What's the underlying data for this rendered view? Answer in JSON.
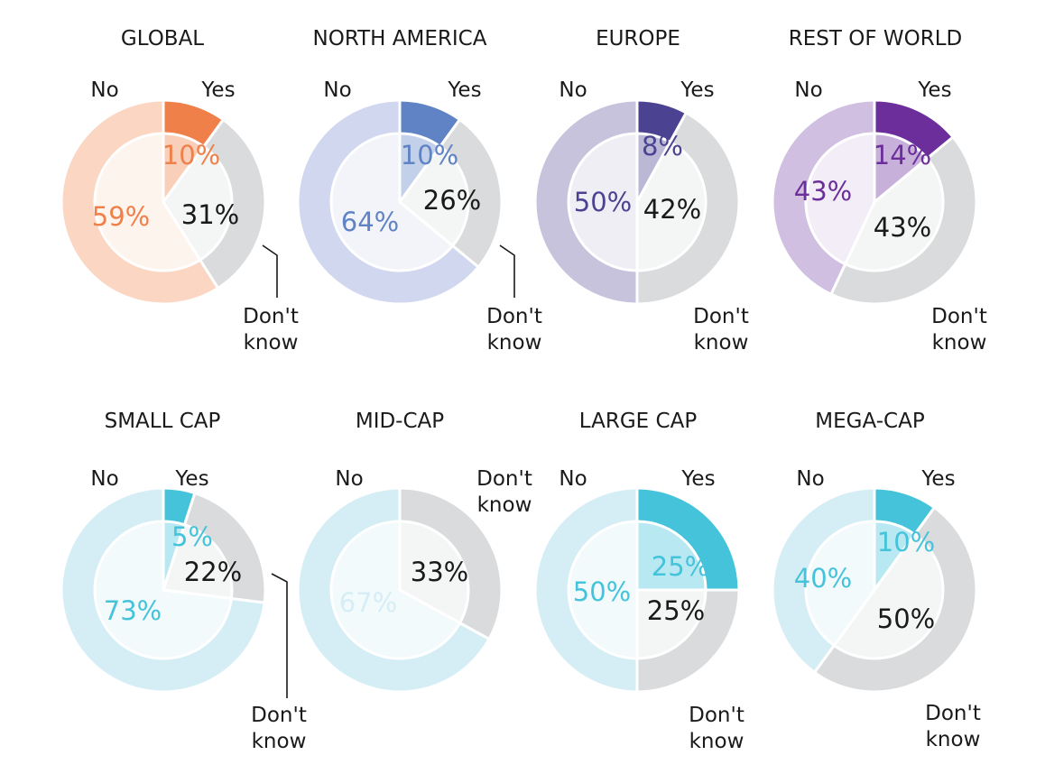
{
  "chart_data": [
    {
      "type": "pie",
      "title": "GLOBAL",
      "categories": [
        "Yes",
        "Don't know",
        "No"
      ],
      "values": [
        10,
        31,
        59
      ],
      "value_labels": [
        "10%",
        "31%",
        "59%"
      ],
      "category_labels": [
        "Yes",
        "Don't\nknow",
        "No"
      ],
      "colors": {
        "yes": "#ef8049",
        "no": "#fbd6c2",
        "dk": "#dadbdd"
      }
    },
    {
      "type": "pie",
      "title": "NORTH AMERICA",
      "categories": [
        "Yes",
        "Don't know",
        "No"
      ],
      "values": [
        10,
        26,
        64
      ],
      "value_labels": [
        "10%",
        "26%",
        "64%"
      ],
      "category_labels": [
        "Yes",
        "Don't\nknow",
        "No"
      ],
      "colors": {
        "yes": "#5f83c4",
        "no": "#d1d7ee",
        "dk": "#dadbdd"
      }
    },
    {
      "type": "pie",
      "title": "EUROPE",
      "categories": [
        "Yes",
        "Don't know",
        "No"
      ],
      "values": [
        8,
        42,
        50
      ],
      "value_labels": [
        "8%",
        "42%",
        "50%"
      ],
      "category_labels": [
        "Yes",
        "Don't\nknow",
        "No"
      ],
      "colors": {
        "yes": "#4b4391",
        "no": "#c7c3dc",
        "dk": "#dadbdd"
      }
    },
    {
      "type": "pie",
      "title": "REST OF WORLD",
      "categories": [
        "Yes",
        "Don't know",
        "No"
      ],
      "values": [
        14,
        43,
        43
      ],
      "value_labels": [
        "14%",
        "43%",
        "43%"
      ],
      "category_labels": [
        "Yes",
        "Don't\nknow",
        "No"
      ],
      "colors": {
        "yes": "#6c2e9a",
        "no": "#d0bfe1",
        "dk": "#dadbdd"
      }
    },
    {
      "type": "pie",
      "title": "SMALL CAP",
      "categories": [
        "Yes",
        "Don't know",
        "No"
      ],
      "values": [
        5,
        22,
        73
      ],
      "value_labels": [
        "5%",
        "22%",
        "73%"
      ],
      "category_labels": [
        "Yes",
        "Don't\nknow",
        "No"
      ],
      "colors": {
        "yes": "#44c3da",
        "no": "#d5eef5",
        "dk": "#dadbdd"
      }
    },
    {
      "type": "pie",
      "title": "MID-CAP",
      "categories": [
        "Don't know",
        "No"
      ],
      "values": [
        33,
        67
      ],
      "value_labels": [
        "33%",
        "67%"
      ],
      "category_labels": [
        "Don't\nknow",
        "No"
      ],
      "colors": {
        "no": "#d5eef5",
        "dk": "#dadbdd"
      }
    },
    {
      "type": "pie",
      "title": "LARGE CAP",
      "categories": [
        "Yes",
        "Don't know",
        "No"
      ],
      "values": [
        25,
        25,
        50
      ],
      "value_labels": [
        "25%",
        "25%",
        "50%"
      ],
      "category_labels": [
        "Yes",
        "Don't\nknow",
        "No"
      ],
      "colors": {
        "yes": "#44c3da",
        "no": "#d5eef5",
        "dk": "#dadbdd"
      }
    },
    {
      "type": "pie",
      "title": "MEGA-CAP",
      "categories": [
        "Yes",
        "Don't know",
        "No"
      ],
      "values": [
        10,
        50,
        40
      ],
      "value_labels": [
        "10%",
        "50%",
        "40%"
      ],
      "category_labels": [
        "Yes",
        "Don't\nknow",
        "No"
      ],
      "colors": {
        "yes": "#44c3da",
        "no": "#d5eef5",
        "dk": "#dadbdd"
      }
    }
  ]
}
